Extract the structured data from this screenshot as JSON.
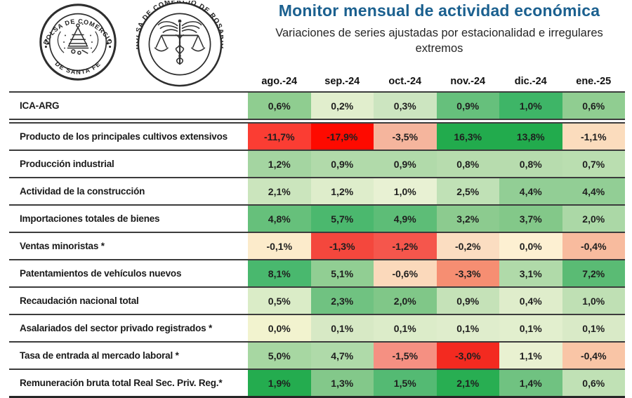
{
  "page": {
    "title": "Monitor mensual de actividad económica",
    "subtitle": "Variaciones de series ajustadas por estacionalidad e irregulares extremos"
  },
  "logos": {
    "santafe": {
      "top": "BOLSA DE COMERCIO",
      "bottom": "DE SANTA FE"
    },
    "rosario": {
      "text": "BOLSA DE COMERCIO DE ROSARIO"
    }
  },
  "table": {
    "columns": [
      "ago.-24",
      "sep.-24",
      "oct.-24",
      "nov.-24",
      "dic.-24",
      "ene.-25"
    ],
    "rows": [
      {
        "label": "ICA-ARG",
        "values": [
          "0,6%",
          "0,2%",
          "0,3%",
          "0,9%",
          "1,0%",
          "0,6%"
        ],
        "colors": [
          "#8FCD90",
          "#E1EECD",
          "#CCE5C0",
          "#66C07C",
          "#3EB567",
          "#90CD91"
        ]
      },
      {
        "label": "Producto de los principales cultivos extensivos",
        "values": [
          "-11,7%",
          "-17,9%",
          "-3,5%",
          "16,3%",
          "13,8%",
          "-1,1%"
        ],
        "colors": [
          "#FB3D33",
          "#FE0A00",
          "#F5B59D",
          "#22AB4D",
          "#22AB4D",
          "#FBDCBD"
        ]
      },
      {
        "label": "Producción industrial",
        "values": [
          "1,2%",
          "0,9%",
          "0,9%",
          "0,8%",
          "0,8%",
          "0,7%"
        ],
        "colors": [
          "#A4D5A1",
          "#B1DAAA",
          "#B1DAAA",
          "#B7DCAE",
          "#B7DCAE",
          "#BADEB0"
        ]
      },
      {
        "label": "Actividad de la construcción",
        "values": [
          "2,1%",
          "1,2%",
          "1,0%",
          "2,5%",
          "4,4%",
          "4,4%"
        ],
        "colors": [
          "#CBE5BD",
          "#DEEDCB",
          "#E8F1D3",
          "#C0E1B6",
          "#92CE95",
          "#92CE95"
        ]
      },
      {
        "label": "Importaciones totales de bienes",
        "values": [
          "4,8%",
          "5,7%",
          "4,9%",
          "3,2%",
          "3,7%",
          "2,0%"
        ],
        "colors": [
          "#66C07B",
          "#4BB86E",
          "#5DBD77",
          "#8CCB8F",
          "#83C889",
          "#ABD8A6"
        ]
      },
      {
        "label": "Ventas minoristas *",
        "values": [
          "-0,1%",
          "-1,3%",
          "-1,2%",
          "-0,2%",
          "0,0%",
          "-0,4%"
        ],
        "colors": [
          "#FCEBCB",
          "#F4473D",
          "#F5564C",
          "#FBDDC1",
          "#FDF0D2",
          "#F8BB9E"
        ]
      },
      {
        "label": "Patentamientos de vehículos nuevos",
        "values": [
          "8,1%",
          "5,1%",
          "-0,6%",
          "-3,3%",
          "3,1%",
          "7,2%"
        ],
        "colors": [
          "#49B86E",
          "#91CE93",
          "#FBD9BB",
          "#F68E72",
          "#B0DAA9",
          "#5ABB74"
        ]
      },
      {
        "label": "Recaudación nacional total",
        "values": [
          "0,5%",
          "2,3%",
          "2,0%",
          "0,9%",
          "0,4%",
          "1,0%"
        ],
        "colors": [
          "#DAECC7",
          "#70C281",
          "#80C788",
          "#C5E2B8",
          "#DFEDCB",
          "#BFE0B4"
        ]
      },
      {
        "label": "Asalariados del sector privado registrados *",
        "values": [
          "0,0%",
          "0,1%",
          "0,1%",
          "0,1%",
          "0,1%",
          "0,1%"
        ],
        "colors": [
          "#F2F3CF",
          "#D7E9C5",
          "#DCECC9",
          "#DFEDCC",
          "#E2EFCE",
          "#D9EAC7"
        ]
      },
      {
        "label": "Tasa de entrada al mercado laboral *",
        "values": [
          "5,0%",
          "4,7%",
          "-1,5%",
          "-3,0%",
          "1,1%",
          "-0,4%"
        ],
        "colors": [
          "#A7D7A2",
          "#AFDAA9",
          "#F59082",
          "#F32A20",
          "#E9F1D1",
          "#F9C5A6"
        ]
      },
      {
        "label": "Remuneración bruta total Real Sec. Priv. Reg.*",
        "values": [
          "1,9%",
          "1,3%",
          "1,5%",
          "2,1%",
          "1,4%",
          "0,6%"
        ],
        "colors": [
          "#24AC4F",
          "#83C88A",
          "#54BA73",
          "#28AE52",
          "#70C281",
          "#C0E1B5"
        ]
      }
    ]
  },
  "chart_data": {
    "type": "table",
    "subtype": "heatmap",
    "title": "Monitor mensual de actividad económica",
    "subtitle": "Variaciones de series ajustadas por estacionalidad e irregulares extremos",
    "columns": [
      "ago.-24",
      "sep.-24",
      "oct.-24",
      "nov.-24",
      "dic.-24",
      "ene.-25"
    ],
    "series": [
      {
        "name": "ICA-ARG",
        "values": [
          0.6,
          0.2,
          0.3,
          0.9,
          1.0,
          0.6
        ]
      },
      {
        "name": "Producto de los principales cultivos extensivos",
        "values": [
          -11.7,
          -17.9,
          -3.5,
          16.3,
          13.8,
          -1.1
        ]
      },
      {
        "name": "Producción industrial",
        "values": [
          1.2,
          0.9,
          0.9,
          0.8,
          0.8,
          0.7
        ]
      },
      {
        "name": "Actividad de la construcción",
        "values": [
          2.1,
          1.2,
          1.0,
          2.5,
          4.4,
          4.4
        ]
      },
      {
        "name": "Importaciones totales de bienes",
        "values": [
          4.8,
          5.7,
          4.9,
          3.2,
          3.7,
          2.0
        ]
      },
      {
        "name": "Ventas minoristas *",
        "values": [
          -0.1,
          -1.3,
          -1.2,
          -0.2,
          0.0,
          -0.4
        ]
      },
      {
        "name": "Patentamientos de vehículos nuevos",
        "values": [
          8.1,
          5.1,
          -0.6,
          -3.3,
          3.1,
          7.2
        ]
      },
      {
        "name": "Recaudación nacional total",
        "values": [
          0.5,
          2.3,
          2.0,
          0.9,
          0.4,
          1.0
        ]
      },
      {
        "name": "Asalariados del sector privado registrados *",
        "values": [
          0.0,
          0.1,
          0.1,
          0.1,
          0.1,
          0.1
        ]
      },
      {
        "name": "Tasa de entrada al mercado laboral *",
        "values": [
          5.0,
          4.7,
          -1.5,
          -3.0,
          1.1,
          -0.4
        ]
      },
      {
        "name": "Remuneración bruta total Real Sec. Priv. Reg.*",
        "values": [
          1.9,
          1.3,
          1.5,
          2.1,
          1.4,
          0.6
        ]
      }
    ],
    "value_format": "percent, comma decimal separator",
    "color_scale": "per-row red (negative) → cream (near zero) → green (positive)",
    "accent_colors": {
      "title_blue": "#1B608F",
      "strong_green": "#22AB4D",
      "strong_red": "#FE0A00"
    }
  }
}
